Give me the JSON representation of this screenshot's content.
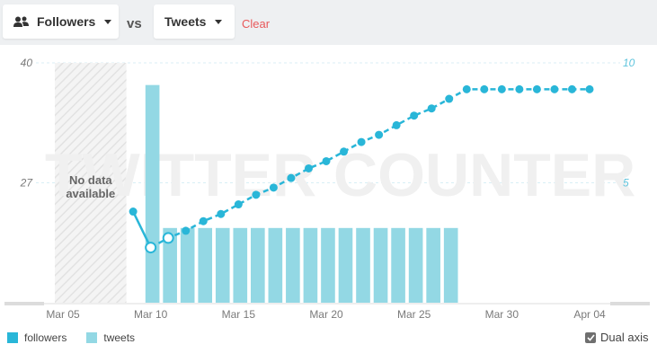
{
  "toolbar": {
    "metric_a_label": "Followers",
    "vs_label": "vs",
    "metric_b_label": "Tweets",
    "clear_label": "Clear"
  },
  "overlay": {
    "no_data_line1": "No data",
    "no_data_line2": "available",
    "watermark": "TWITTER COUNTER"
  },
  "legend": {
    "followers_label": "followers",
    "tweets_label": "tweets",
    "dual_axis_label": "Dual axis",
    "dual_axis_checked": true
  },
  "colors": {
    "followers": "#29b6d8",
    "tweets": "#93d8e4",
    "clear": "#e8585a",
    "axis_text": "#7a7a7a",
    "right_axis_text": "#5fc4dd"
  },
  "chart_data": {
    "type": "bar",
    "no_data_range": [
      "2015-03-05",
      "2015-03-08"
    ],
    "x_ticks": [
      "Mar 05",
      "Mar 10",
      "Mar 15",
      "Mar 20",
      "Mar 25",
      "Mar 30",
      "Apr 04"
    ],
    "x_tick_dates": [
      "2015-03-05",
      "2015-03-10",
      "2015-03-15",
      "2015-03-20",
      "2015-03-25",
      "2015-03-30",
      "2015-04-04"
    ],
    "x_range": [
      "2015-03-04",
      "2015-04-05"
    ],
    "left_axis": {
      "ticks": [
        "40",
        "27"
      ],
      "ylim": [
        14,
        40
      ]
    },
    "right_axis": {
      "ticks": [
        "10",
        "5"
      ],
      "ylim": [
        0,
        10
      ]
    },
    "grid": true,
    "series": [
      {
        "name": "tweets",
        "type": "bar",
        "axis": "left",
        "dates": [
          "2015-03-10",
          "2015-03-11",
          "2015-03-12",
          "2015-03-13",
          "2015-03-14",
          "2015-03-15",
          "2015-03-16",
          "2015-03-17",
          "2015-03-18",
          "2015-03-19",
          "2015-03-20",
          "2015-03-21",
          "2015-03-22",
          "2015-03-23",
          "2015-03-24",
          "2015-03-25",
          "2015-03-26",
          "2015-03-27"
        ],
        "values": [
          37.6,
          22.1,
          22.1,
          22.1,
          22.1,
          22.1,
          22.1,
          22.1,
          22.1,
          22.1,
          22.1,
          22.1,
          22.1,
          22.1,
          22.1,
          22.1,
          22.1,
          22.1
        ]
      },
      {
        "name": "followers",
        "type": "line",
        "axis": "right",
        "dates": [
          "2015-03-09",
          "2015-03-10",
          "2015-03-11",
          "2015-03-12",
          "2015-03-13",
          "2015-03-14",
          "2015-03-15",
          "2015-03-16",
          "2015-03-17",
          "2015-03-18",
          "2015-03-19",
          "2015-03-20",
          "2015-03-21",
          "2015-03-22",
          "2015-03-23",
          "2015-03-24",
          "2015-03-25",
          "2015-03-26",
          "2015-03-27",
          "2015-03-28",
          "2015-03-29",
          "2015-03-30",
          "2015-03-31",
          "2015-04-01",
          "2015-04-02",
          "2015-04-03",
          "2015-04-04"
        ],
        "values": [
          3.8,
          2.3,
          2.7,
          3.0,
          3.4,
          3.7,
          4.1,
          4.5,
          4.8,
          5.2,
          5.6,
          5.9,
          6.3,
          6.7,
          7.0,
          7.4,
          7.8,
          8.1,
          8.5,
          8.9,
          8.9,
          8.9,
          8.9,
          8.9,
          8.9,
          8.9,
          8.9
        ],
        "hollow_dates": [
          "2015-03-10",
          "2015-03-11"
        ]
      }
    ]
  }
}
